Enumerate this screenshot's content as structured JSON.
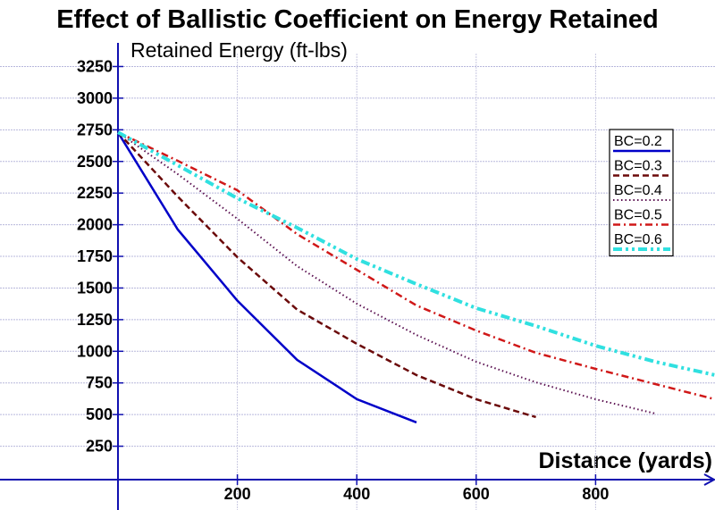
{
  "chart_data": {
    "type": "line",
    "title": "Effect of Ballistic Coefficient on Energy Retained",
    "xlabel": "Distance (yards)",
    "ylabel": "Retained Energy (ft-lbs)",
    "xlim": [
      0,
      1000
    ],
    "ylim": [
      0,
      3300
    ],
    "x_ticks": [
      200,
      400,
      600,
      800
    ],
    "y_ticks": [
      250,
      500,
      750,
      1000,
      1250,
      1500,
      1750,
      2000,
      2250,
      2500,
      2750,
      3000,
      3250
    ],
    "grid": true,
    "legend_position": "right",
    "series": [
      {
        "name": "BC=0.2",
        "color": "#0000c8",
        "style": "solid",
        "x": [
          0,
          100,
          200,
          300,
          400,
          500
        ],
        "y": [
          2730,
          1963,
          1400,
          932,
          622,
          438
        ]
      },
      {
        "name": "BC=0.3",
        "color": "#6b0a0a",
        "style": "dash",
        "x": [
          0,
          100,
          200,
          300,
          400,
          500,
          600,
          700
        ],
        "y": [
          2730,
          2223,
          1743,
          1330,
          1059,
          812,
          621,
          480
        ]
      },
      {
        "name": "BC=0.4",
        "color": "#5a1050",
        "style": "dot",
        "x": [
          0,
          100,
          200,
          300,
          400,
          500,
          600,
          700,
          800,
          900
        ],
        "y": [
          2730,
          2400,
          2047,
          1673,
          1376,
          1129,
          917,
          755,
          621,
          508
        ]
      },
      {
        "name": "BC=0.5",
        "color": "#d01818",
        "style": "dashdot",
        "x": [
          0,
          100,
          200,
          300,
          400,
          500,
          600,
          700,
          800,
          900,
          1000
        ],
        "y": [
          2730,
          2505,
          2272,
          1926,
          1644,
          1362,
          1164,
          988,
          861,
          741,
          621
        ]
      },
      {
        "name": "BC=0.6",
        "color": "#30e0e0",
        "style": "dashdotdot",
        "x": [
          0,
          100,
          200,
          300,
          400,
          500,
          600,
          700,
          800,
          900,
          1000
        ],
        "y": [
          2730,
          2470,
          2209,
          1976,
          1729,
          1531,
          1341,
          1200,
          1044,
          917,
          812
        ]
      }
    ]
  }
}
